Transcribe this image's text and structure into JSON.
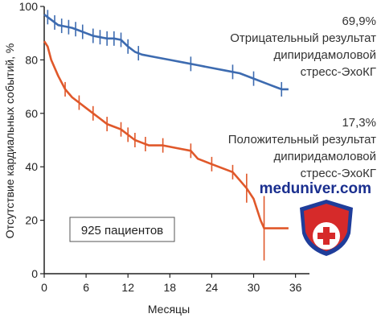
{
  "chart_data": {
    "type": "line",
    "xlabel": "Месяцы",
    "ylabel": "Отсутствие кардиальных событий, %",
    "xlim": [
      0,
      38
    ],
    "ylim": [
      0,
      100
    ],
    "x_ticks": [
      0,
      6,
      12,
      18,
      24,
      30,
      36
    ],
    "y_ticks": [
      0,
      20,
      40,
      60,
      80,
      100
    ],
    "grid": false,
    "series": [
      {
        "name": "Отрицательный результат дипиридамоловой стресс-ЭхоКГ",
        "color": "#3d6bb0",
        "x": [
          0,
          0.5,
          1,
          2,
          3,
          4,
          5,
          6,
          7,
          8,
          9,
          10,
          11,
          12,
          13,
          14,
          16,
          18,
          20,
          22,
          24,
          26,
          28,
          30,
          32,
          33,
          34,
          35
        ],
        "y": [
          97,
          96,
          95,
          93,
          92.5,
          92,
          91,
          90,
          89,
          88.5,
          88,
          88,
          87.5,
          85,
          83,
          82,
          81,
          80,
          79,
          78,
          77,
          76,
          75,
          73,
          71,
          70,
          69,
          69
        ],
        "censor_x": [
          0.5,
          1.5,
          2.5,
          3.5,
          4.5,
          5.5,
          7,
          8,
          9,
          10,
          11,
          12,
          13.5,
          21,
          27,
          30,
          34
        ]
      },
      {
        "name": "Положительный результат дипиридамоловой стресс-ЭхоКГ",
        "color": "#e0582a",
        "x": [
          0,
          0.5,
          1,
          2,
          3,
          4,
          5,
          6,
          7,
          8,
          9,
          10,
          11,
          12,
          13,
          14,
          15,
          17,
          19,
          21,
          22,
          24,
          27,
          28,
          29,
          30,
          31,
          31.5,
          35
        ],
        "y": [
          87,
          85,
          80,
          74,
          69,
          66,
          64,
          62,
          60,
          58,
          56,
          55,
          54,
          52,
          50,
          49,
          48,
          48,
          47,
          46,
          43,
          41,
          38,
          35,
          32,
          28,
          20,
          17,
          17
        ],
        "censor_x": [
          3,
          5,
          7,
          9,
          11,
          12,
          13,
          14.5,
          17,
          21,
          24,
          27,
          29,
          31.5
        ]
      }
    ],
    "annotations": [
      {
        "text_lines": [
          "69,9%",
          "Отрицательный результат",
          "дипиридамоловой",
          "стресс-ЭхоКГ"
        ]
      },
      {
        "text_lines": [
          "17,3%",
          "Положительный результат",
          "дипиридамоловой",
          "стресс-ЭхоКГ"
        ]
      }
    ],
    "box_label": "925 пациентов",
    "watermark": "meduniver.com"
  }
}
